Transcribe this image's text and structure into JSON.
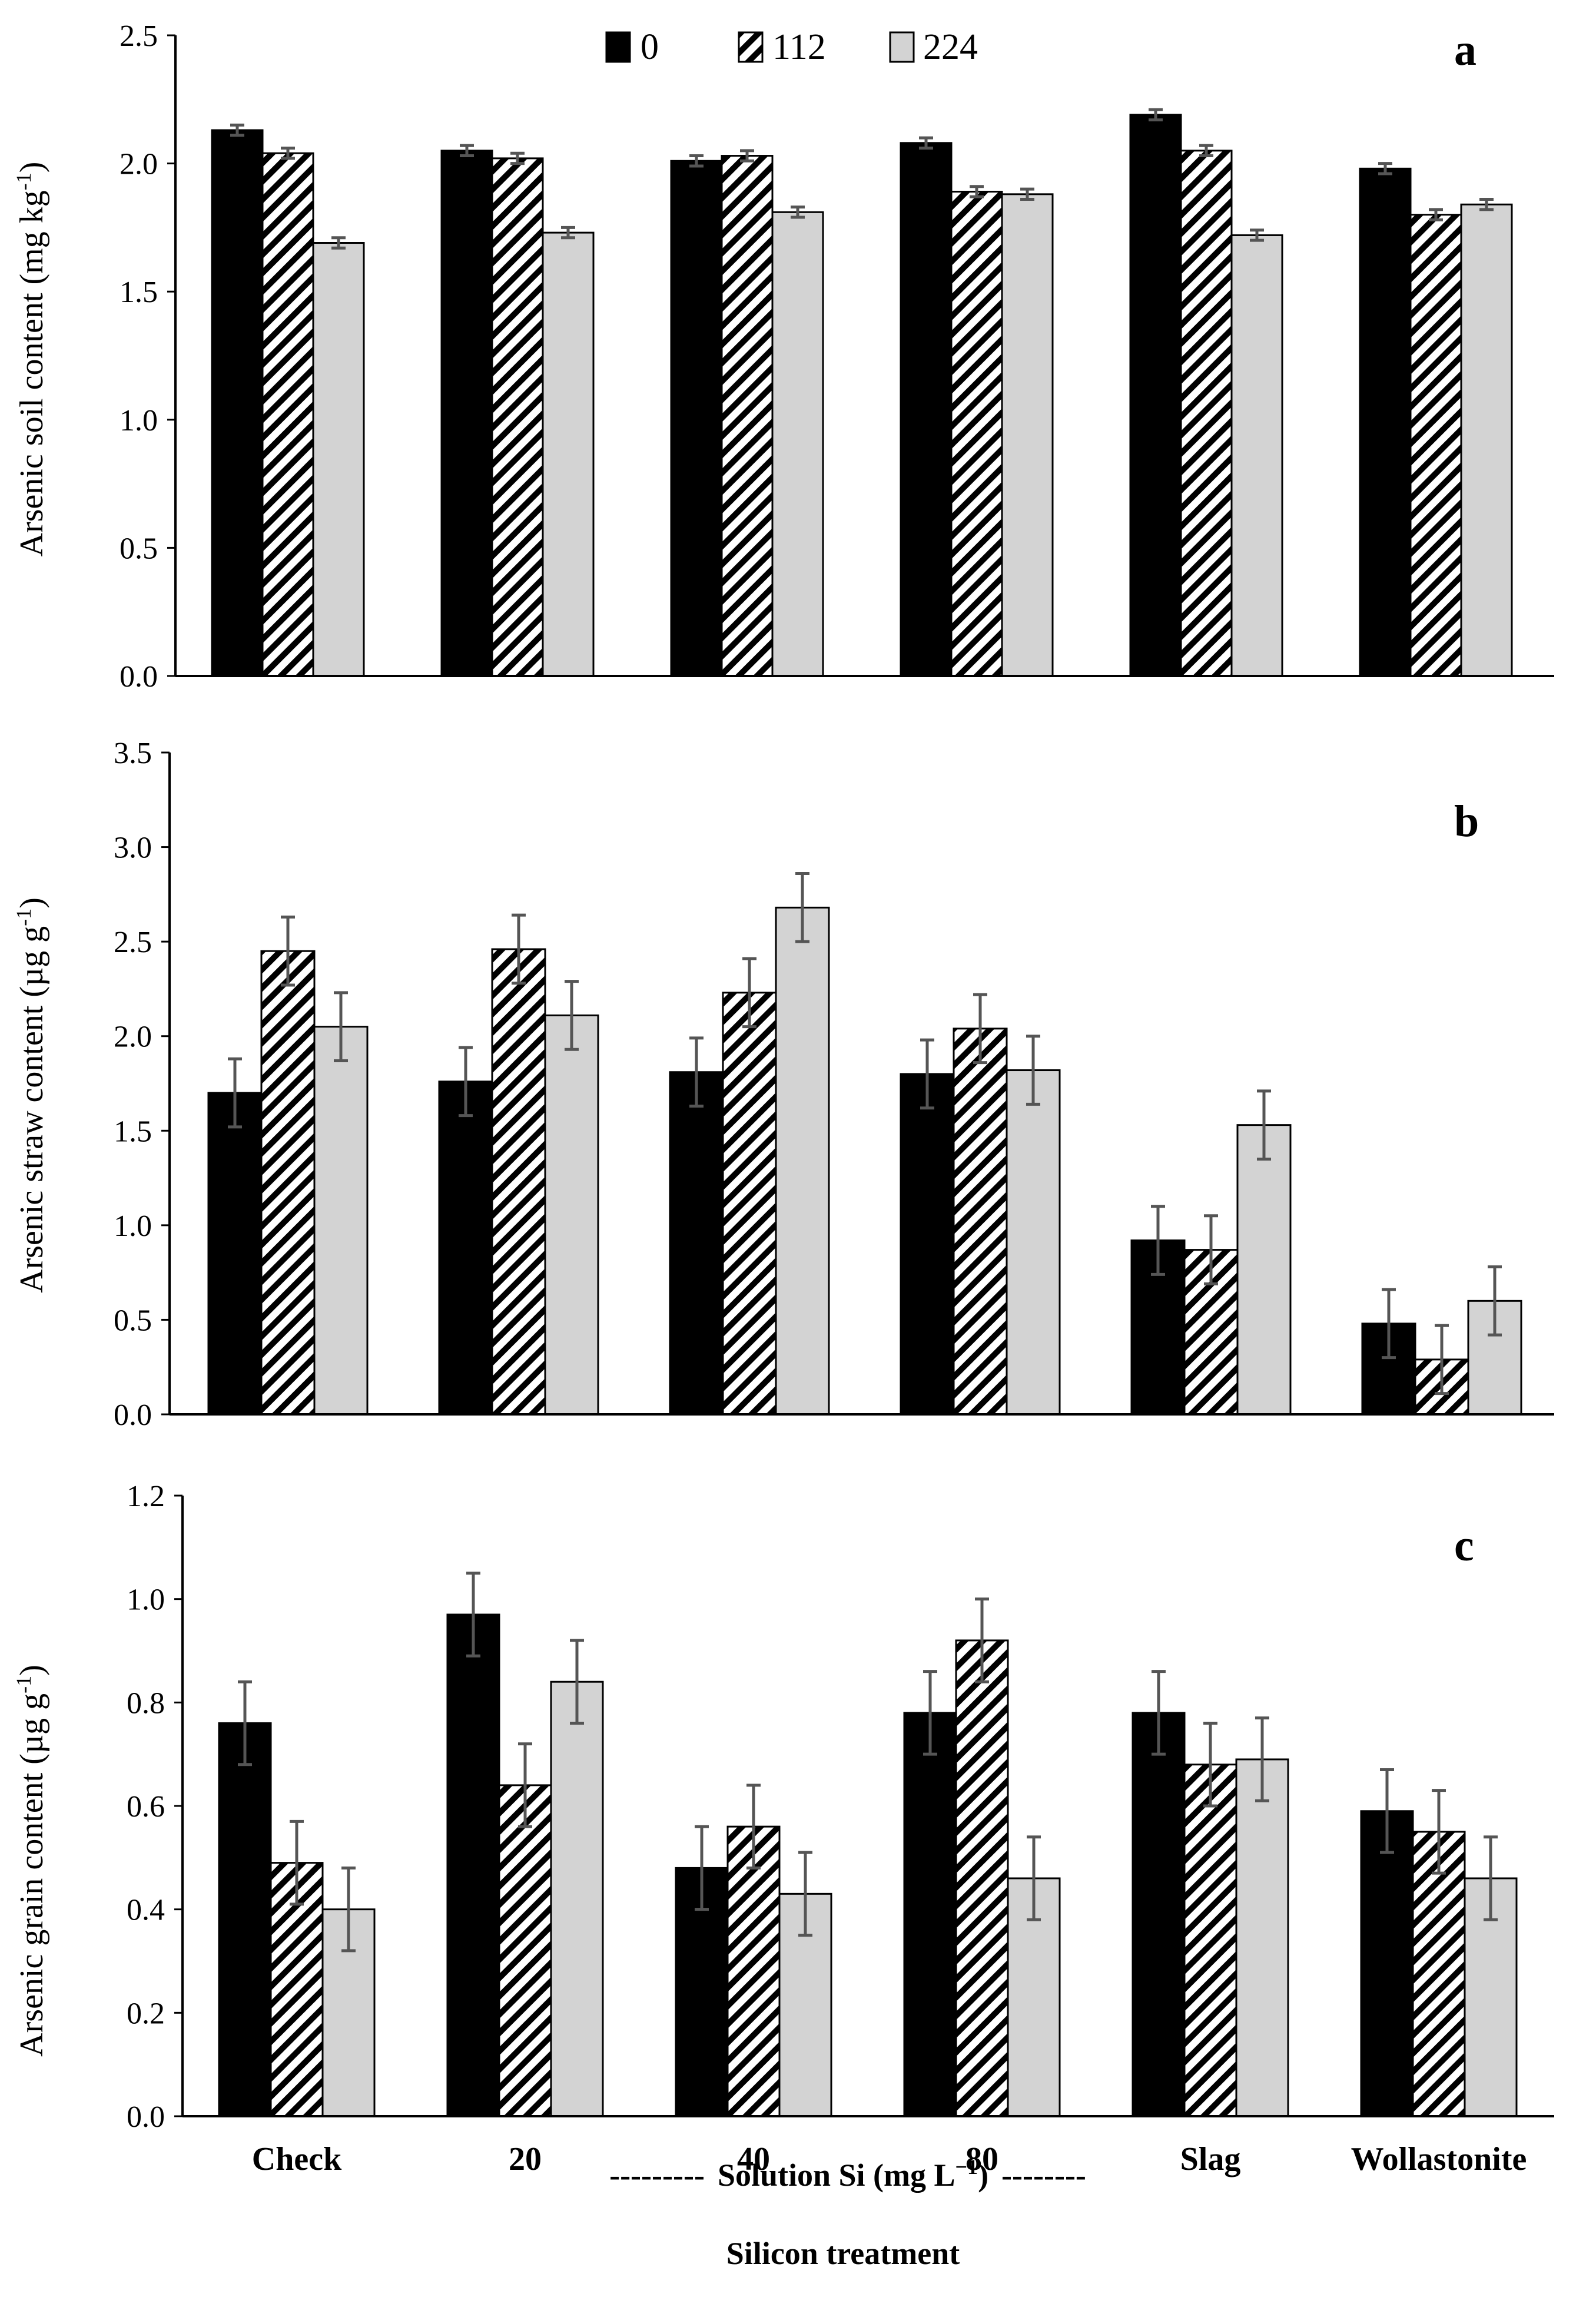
{
  "colors": {
    "s0": "#000000",
    "s112_hatch": "#000000",
    "s224": "#d3d3d3",
    "error_bar": "#555555"
  },
  "legend": {
    "items": [
      "0",
      "112",
      "224"
    ]
  },
  "x_axis": {
    "dash_left": "---------",
    "solution_label": "Solution Si (mg L",
    "solution_sup": "−1",
    "solution_close": ")",
    "dash_right": "--------",
    "title": "Silicon treatment"
  },
  "chart_data": [
    {
      "type": "bar",
      "panel": "a",
      "ylabel_main": "Arsenic soil content (mg kg",
      "ylabel_sup": "-1",
      "ylabel_close": ")",
      "ylim": [
        0,
        2.5
      ],
      "yticks": [
        "0.0",
        "0.5",
        "1.0",
        "1.5",
        "2.0",
        "2.5"
      ],
      "categories": [
        "Check",
        "20",
        "40",
        "80",
        "Slag",
        "Wollastonite"
      ],
      "series": [
        {
          "name": "0",
          "values": [
            2.13,
            2.05,
            2.01,
            2.08,
            2.19,
            1.98
          ],
          "errors": [
            0.02,
            0.02,
            0.02,
            0.02,
            0.02,
            0.02
          ]
        },
        {
          "name": "112",
          "values": [
            2.04,
            2.02,
            2.03,
            1.89,
            2.05,
            1.8
          ],
          "errors": [
            0.02,
            0.02,
            0.02,
            0.02,
            0.02,
            0.02
          ]
        },
        {
          "name": "224",
          "values": [
            1.69,
            1.73,
            1.81,
            1.88,
            1.72,
            1.84
          ],
          "errors": [
            0.02,
            0.02,
            0.02,
            0.02,
            0.02,
            0.02
          ]
        }
      ]
    },
    {
      "type": "bar",
      "panel": "b",
      "ylabel_main": "Arsenic straw content (µg g",
      "ylabel_sup": "-1",
      "ylabel_close": ")",
      "ylim": [
        0,
        3.5
      ],
      "yticks": [
        "0.0",
        "0.5",
        "1.0",
        "1.5",
        "2.0",
        "2.5",
        "3.0",
        "3.5"
      ],
      "categories": [
        "Check",
        "20",
        "40",
        "80",
        "Slag",
        "Wollastonite"
      ],
      "series": [
        {
          "name": "0",
          "values": [
            1.7,
            1.76,
            1.81,
            1.8,
            0.92,
            0.48
          ],
          "errors": [
            0.18,
            0.18,
            0.18,
            0.18,
            0.18,
            0.18
          ]
        },
        {
          "name": "112",
          "values": [
            2.45,
            2.46,
            2.23,
            2.04,
            0.87,
            0.29
          ],
          "errors": [
            0.18,
            0.18,
            0.18,
            0.18,
            0.18,
            0.18
          ]
        },
        {
          "name": "224",
          "values": [
            2.05,
            2.11,
            2.68,
            1.82,
            1.53,
            0.6
          ],
          "errors": [
            0.18,
            0.18,
            0.18,
            0.18,
            0.18,
            0.18
          ]
        }
      ]
    },
    {
      "type": "bar",
      "panel": "c",
      "ylabel_main": "Arsenic grain content (µg g",
      "ylabel_sup": "-1",
      "ylabel_close": ")",
      "ylim": [
        0,
        1.2
      ],
      "yticks": [
        "0.0",
        "0.2",
        "0.4",
        "0.6",
        "0.8",
        "1.0",
        "1.2"
      ],
      "categories": [
        "Check",
        "20",
        "40",
        "80",
        "Slag",
        "Wollastonite"
      ],
      "series": [
        {
          "name": "0",
          "values": [
            0.76,
            0.97,
            0.48,
            0.78,
            0.78,
            0.59
          ],
          "errors": [
            0.08,
            0.08,
            0.08,
            0.08,
            0.08,
            0.08
          ]
        },
        {
          "name": "112",
          "values": [
            0.49,
            0.64,
            0.56,
            0.92,
            0.68,
            0.55
          ],
          "errors": [
            0.08,
            0.08,
            0.08,
            0.08,
            0.08,
            0.08
          ]
        },
        {
          "name": "224",
          "values": [
            0.4,
            0.84,
            0.43,
            0.46,
            0.69,
            0.46
          ],
          "errors": [
            0.08,
            0.08,
            0.08,
            0.08,
            0.08,
            0.08
          ]
        }
      ]
    }
  ]
}
